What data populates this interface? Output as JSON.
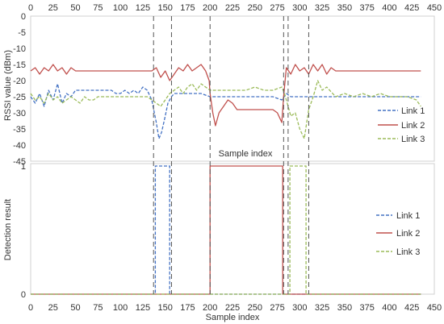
{
  "colors": {
    "link1": "#4472c4",
    "link2": "#c0504d",
    "link3": "#9bbb59",
    "guide": "#555555",
    "tick_text": "#333333"
  },
  "chart_data": [
    {
      "type": "line",
      "title": "",
      "xlabel": "Sample index",
      "ylabel": "RSSI value (dBm)",
      "xlim": [
        0,
        450
      ],
      "ylim": [
        -45,
        0
      ],
      "x_ticks": [
        0,
        25,
        50,
        75,
        100,
        125,
        150,
        175,
        200,
        225,
        250,
        275,
        300,
        325,
        350,
        375,
        400,
        425,
        450
      ],
      "x_tick_labels": [
        "0",
        "25",
        "50",
        "75",
        "100",
        "125",
        "150",
        "175",
        "200",
        "225",
        "250",
        "275",
        "300",
        "325",
        "350",
        "375",
        "400",
        "425",
        "450"
      ],
      "x_axis_position": "top",
      "y_ticks": [
        0,
        -5,
        -10,
        -15,
        -20,
        -25,
        -30,
        -35,
        -40,
        -45
      ],
      "y_tick_labels": [
        "0",
        "-5",
        "-10",
        "-15",
        "-20",
        "-25",
        "-30",
        "-35",
        "-40",
        "-45"
      ],
      "grid": false,
      "legend": "right",
      "guide_lines_x": [
        137,
        157,
        200,
        282,
        287,
        310
      ],
      "series": [
        {
          "name": "Link 1",
          "style": "dashed",
          "color": "#4472c4",
          "x": [
            0,
            5,
            10,
            15,
            20,
            25,
            30,
            35,
            40,
            45,
            50,
            55,
            60,
            65,
            70,
            75,
            80,
            85,
            90,
            95,
            100,
            105,
            110,
            115,
            120,
            125,
            130,
            135,
            140,
            143,
            146,
            150,
            153,
            157,
            160,
            170,
            180,
            190,
            200,
            210,
            220,
            230,
            240,
            250,
            260,
            270,
            280,
            285,
            290,
            300,
            310,
            320,
            330,
            340,
            350,
            360,
            370,
            380,
            390,
            400,
            410,
            420,
            430,
            435
          ],
          "values": [
            -25,
            -27,
            -24,
            -28,
            -23,
            -26,
            -21,
            -27,
            -24,
            -25,
            -23,
            -23,
            -23,
            -23,
            -23,
            -23,
            -23,
            -23,
            -23,
            -24,
            -24,
            -23,
            -24,
            -23,
            -24,
            -22,
            -23,
            -26,
            -33,
            -38,
            -36,
            -31,
            -27,
            -25,
            -24,
            -24,
            -24,
            -24,
            -25,
            -25,
            -25,
            -25,
            -25,
            -25,
            -25,
            -25,
            -26,
            -24,
            -25,
            -25,
            -25,
            -25,
            -25,
            -25,
            -25,
            -25,
            -25,
            -25,
            -25,
            -25,
            -25,
            -25,
            -25,
            -25
          ]
        },
        {
          "name": "Link 2",
          "style": "solid",
          "color": "#c0504d",
          "x": [
            0,
            5,
            10,
            15,
            20,
            25,
            30,
            35,
            40,
            45,
            50,
            55,
            60,
            65,
            70,
            75,
            80,
            90,
            100,
            110,
            120,
            130,
            135,
            140,
            145,
            150,
            155,
            160,
            165,
            170,
            175,
            180,
            185,
            190,
            195,
            199,
            200,
            203,
            206,
            210,
            215,
            220,
            225,
            230,
            240,
            250,
            260,
            270,
            275,
            280,
            282,
            285,
            290,
            295,
            300,
            305,
            310,
            315,
            320,
            325,
            330,
            335,
            340,
            350,
            360,
            370,
            380,
            390,
            400,
            410,
            420,
            430,
            435
          ],
          "values": [
            -17,
            -16,
            -18,
            -16,
            -17,
            -15,
            -17,
            -16,
            -18,
            -16,
            -17,
            -17,
            -17,
            -17,
            -17,
            -17,
            -17,
            -17,
            -17,
            -17,
            -17,
            -17,
            -17,
            -16,
            -19,
            -17,
            -20,
            -18,
            -16,
            -17,
            -15,
            -17,
            -16,
            -15,
            -17,
            -20,
            -24,
            -30,
            -34,
            -30,
            -28,
            -26,
            -27,
            -29,
            -29,
            -29,
            -29,
            -29,
            -30,
            -33,
            -25,
            -16,
            -18,
            -15,
            -17,
            -16,
            -18,
            -15,
            -17,
            -15,
            -18,
            -16,
            -17,
            -17,
            -17,
            -17,
            -17,
            -17,
            -17,
            -17,
            -17,
            -17,
            -17
          ]
        },
        {
          "name": "Link 3",
          "style": "dashed",
          "color": "#9bbb59",
          "x": [
            0,
            5,
            10,
            15,
            20,
            25,
            30,
            35,
            40,
            45,
            50,
            55,
            60,
            65,
            70,
            75,
            80,
            90,
            100,
            110,
            120,
            130,
            135,
            140,
            145,
            150,
            155,
            160,
            165,
            170,
            175,
            180,
            185,
            190,
            195,
            200,
            210,
            220,
            230,
            240,
            250,
            260,
            270,
            280,
            283,
            287,
            290,
            295,
            300,
            305,
            310,
            315,
            320,
            325,
            330,
            340,
            350,
            360,
            370,
            380,
            390,
            400,
            410,
            420,
            430,
            435
          ],
          "values": [
            -24,
            -26,
            -25,
            -27,
            -24,
            -26,
            -25,
            -27,
            -26,
            -25,
            -26,
            -27,
            -25,
            -26,
            -26,
            -25,
            -25,
            -25,
            -25,
            -25,
            -25,
            -25,
            -26,
            -27,
            -28,
            -26,
            -24,
            -23,
            -22,
            -24,
            -22,
            -21,
            -23,
            -21,
            -22,
            -23,
            -23,
            -23,
            -23,
            -23,
            -22,
            -23,
            -23,
            -22,
            -24,
            -28,
            -31,
            -30,
            -35,
            -38,
            -29,
            -25,
            -20,
            -23,
            -22,
            -25,
            -24,
            -25,
            -24,
            -25,
            -24,
            -25,
            -25,
            -25,
            -26,
            -28
          ]
        }
      ]
    },
    {
      "type": "line",
      "title": "",
      "xlabel": "Sample index",
      "ylabel": "Detection result",
      "xlim": [
        0,
        450
      ],
      "ylim": [
        0,
        1
      ],
      "x_ticks": [
        0,
        25,
        50,
        75,
        100,
        125,
        150,
        175,
        200,
        225,
        250,
        275,
        300,
        325,
        350,
        375,
        400,
        425,
        450
      ],
      "x_tick_labels": [
        "0",
        "25",
        "50",
        "75",
        "100",
        "125",
        "150",
        "175",
        "200",
        "225",
        "250",
        "275",
        "300",
        "325",
        "350",
        "375",
        "400",
        "425",
        "450"
      ],
      "x_axis_position": "bottom",
      "y_ticks": [
        0,
        1
      ],
      "y_tick_labels": [
        "0",
        "1"
      ],
      "grid": false,
      "legend": "right",
      "guide_lines_x": [
        137,
        157,
        200,
        282,
        287,
        310
      ],
      "series": [
        {
          "name": "Link 1",
          "style": "dashed",
          "color": "#4472c4",
          "x": [
            0,
            139,
            139,
            155,
            155,
            435
          ],
          "values": [
            0,
            0,
            1,
            1,
            0,
            0
          ]
        },
        {
          "name": "Link 2",
          "style": "solid",
          "color": "#c0504d",
          "x": [
            0,
            200,
            200,
            281,
            281,
            435
          ],
          "values": [
            0,
            0,
            1,
            1,
            0,
            0
          ]
        },
        {
          "name": "Link 3",
          "style": "dashed",
          "color": "#9bbb59",
          "x": [
            0,
            289,
            289,
            307,
            307,
            435
          ],
          "values": [
            0,
            0,
            1,
            1,
            0,
            0
          ]
        }
      ]
    }
  ]
}
